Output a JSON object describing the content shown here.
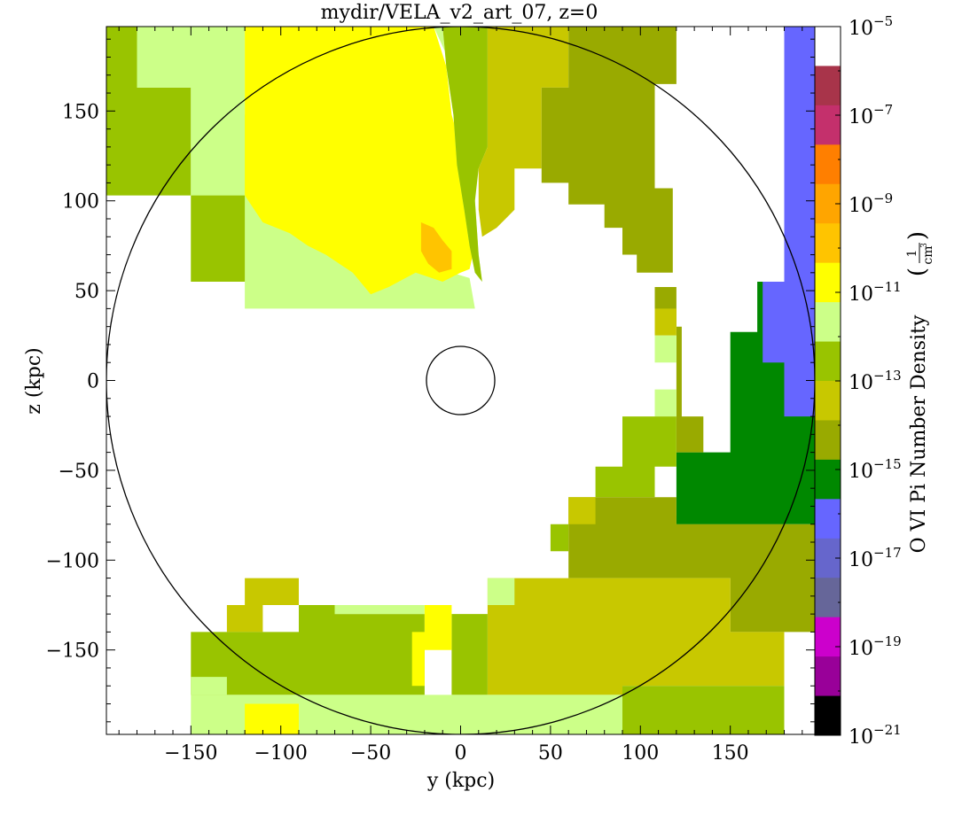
{
  "chart_data": {
    "type": "heatmap",
    "title": "mydir/VELA_v2_art_07, z=0",
    "xlabel": "y  (kpc)",
    "ylabel": "z  (kpc)",
    "xlim": [
      -197,
      197
    ],
    "ylim": [
      -197,
      197
    ],
    "xticks": [
      -150,
      -100,
      -50,
      0,
      50,
      100,
      150
    ],
    "yticks": [
      150,
      100,
      50,
      0,
      -50,
      -100,
      -150
    ],
    "xtick_labels": [
      "−150",
      "−100",
      "−50",
      "0",
      "50",
      "100",
      "150"
    ],
    "ytick_labels": [
      "150",
      "100",
      "50",
      "0",
      "−50",
      "−100",
      "−150"
    ],
    "colorbar": {
      "label": "O VI Pi Number Density",
      "unit_num": "1",
      "unit_den": "cm",
      "unit_exp": "3",
      "scale": "log",
      "range_exp": [
        -21,
        -5
      ],
      "tick_exps": [
        -5,
        -7,
        -9,
        -11,
        -13,
        -15,
        -17,
        -19,
        -21
      ],
      "tick_labels": [
        {
          "base": "10",
          "exp": "-5"
        },
        {
          "base": "10",
          "exp": "-7"
        },
        {
          "base": "10",
          "exp": "-9"
        },
        {
          "base": "10",
          "exp": "-11"
        },
        {
          "base": "10",
          "exp": "-13"
        },
        {
          "base": "10",
          "exp": "-15"
        },
        {
          "base": "10",
          "exp": "-17"
        },
        {
          "base": "10",
          "exp": "-19"
        },
        {
          "base": "10",
          "exp": "-21"
        }
      ],
      "colors_top_to_bottom": [
        "#ffffff",
        "#a8344a",
        "#c4306c",
        "#ff7f00",
        "#ffa500",
        "#ffc400",
        "#ffff00",
        "#ccff88",
        "#99c400",
        "#c8c800",
        "#99aa00",
        "#008800",
        "#6666ff",
        "#6666cc",
        "#666699",
        "#cc00cc",
        "#990099",
        "#000000"
      ]
    },
    "circles": [
      {
        "cx": 0,
        "cy": 0,
        "r": 197
      },
      {
        "cx": 0,
        "cy": 0,
        "r": 19
      }
    ],
    "regions": [
      {
        "color": "#99c400",
        "points": [
          [
            -197,
            197
          ],
          [
            -180,
            197
          ],
          [
            -180,
            163
          ],
          [
            -150,
            163
          ],
          [
            -150,
            103
          ],
          [
            -197,
            103
          ]
        ]
      },
      {
        "color": "#ccff88",
        "points": [
          [
            -180,
            197
          ],
          [
            -120,
            197
          ],
          [
            -120,
            148
          ],
          [
            -90,
            148
          ],
          [
            -90,
            118
          ],
          [
            -60,
            118
          ],
          [
            -60,
            103
          ],
          [
            -150,
            103
          ],
          [
            -150,
            163
          ],
          [
            -180,
            163
          ]
        ]
      },
      {
        "color": "#ccff88",
        "points": [
          [
            -150,
            103
          ],
          [
            -60,
            103
          ],
          [
            -60,
            85
          ],
          [
            -35,
            85
          ],
          [
            -35,
            65
          ],
          [
            -5,
            60
          ],
          [
            5,
            57
          ],
          [
            8,
            40
          ],
          [
            -120,
            40
          ],
          [
            -120,
            55
          ],
          [
            -150,
            55
          ]
        ]
      },
      {
        "color": "#99c400",
        "points": [
          [
            -150,
            103
          ],
          [
            -120,
            103
          ],
          [
            -120,
            55
          ],
          [
            -150,
            55
          ]
        ]
      },
      {
        "color": "#ffff00",
        "points": [
          [
            -120,
            197
          ],
          [
            -15,
            197
          ],
          [
            -8,
            175
          ],
          [
            -5,
            148
          ],
          [
            0,
            130
          ],
          [
            5,
            118
          ],
          [
            8,
            95
          ],
          [
            8,
            75
          ],
          [
            5,
            62
          ],
          [
            0,
            60
          ],
          [
            -10,
            55
          ],
          [
            -25,
            60
          ],
          [
            -40,
            52
          ],
          [
            -50,
            48
          ],
          [
            -60,
            60
          ],
          [
            -75,
            70
          ],
          [
            -85,
            75
          ],
          [
            -95,
            82
          ],
          [
            -110,
            88
          ],
          [
            -120,
            103
          ],
          [
            -120,
            148
          ]
        ]
      },
      {
        "color": "#ffc400",
        "points": [
          [
            -22,
            88
          ],
          [
            -15,
            85
          ],
          [
            -10,
            78
          ],
          [
            -5,
            72
          ],
          [
            -5,
            62
          ],
          [
            -12,
            60
          ],
          [
            -18,
            65
          ],
          [
            -22,
            72
          ]
        ]
      },
      {
        "color": "#ccff88",
        "points": [
          [
            -15,
            197
          ],
          [
            -10,
            197
          ],
          [
            -8,
            175
          ],
          [
            -4,
            148
          ],
          [
            -2,
            120
          ],
          [
            2,
            95
          ],
          [
            5,
            75
          ],
          [
            8,
            60
          ],
          [
            12,
            55
          ],
          [
            10,
            70
          ],
          [
            8,
            100
          ],
          [
            5,
            120
          ],
          [
            0,
            150
          ],
          [
            -5,
            175
          ]
        ]
      },
      {
        "color": "#99c400",
        "points": [
          [
            -10,
            197
          ],
          [
            15,
            197
          ],
          [
            15,
            130
          ],
          [
            10,
            118
          ],
          [
            8,
            100
          ],
          [
            10,
            70
          ],
          [
            12,
            55
          ],
          [
            8,
            60
          ],
          [
            5,
            75
          ],
          [
            2,
            95
          ],
          [
            -2,
            120
          ],
          [
            -4,
            148
          ],
          [
            -8,
            175
          ]
        ]
      },
      {
        "color": "#c8c800",
        "points": [
          [
            15,
            197
          ],
          [
            60,
            197
          ],
          [
            60,
            163
          ],
          [
            45,
            163
          ],
          [
            45,
            118
          ],
          [
            30,
            118
          ],
          [
            30,
            95
          ],
          [
            25,
            90
          ],
          [
            20,
            85
          ],
          [
            12,
            80
          ],
          [
            10,
            95
          ],
          [
            10,
            118
          ],
          [
            15,
            130
          ]
        ]
      },
      {
        "color": "#99aa00",
        "points": [
          [
            60,
            197
          ],
          [
            120,
            197
          ],
          [
            120,
            165
          ],
          [
            108,
            165
          ],
          [
            108,
            107
          ],
          [
            118,
            107
          ],
          [
            118,
            60
          ],
          [
            98,
            60
          ],
          [
            98,
            70
          ],
          [
            90,
            70
          ],
          [
            90,
            85
          ],
          [
            80,
            85
          ],
          [
            80,
            98
          ],
          [
            60,
            98
          ],
          [
            60,
            110
          ],
          [
            45,
            110
          ],
          [
            45,
            163
          ],
          [
            60,
            163
          ]
        ]
      },
      {
        "color": "#008800",
        "points": [
          [
            120,
            197
          ],
          [
            180,
            197
          ],
          [
            180,
            55
          ],
          [
            165,
            55
          ],
          [
            165,
            27
          ],
          [
            150,
            27
          ],
          [
            150,
            -40
          ],
          [
            120,
            -40
          ],
          [
            120,
            -80
          ],
          [
            180,
            -80
          ],
          [
            180,
            -80
          ],
          [
            197,
            -80
          ],
          [
            197,
            197
          ]
        ]
      },
      {
        "color": "#008800",
        "points": [
          [
            120,
            -80
          ],
          [
            180,
            -80
          ],
          [
            180,
            -75
          ],
          [
            120,
            -75
          ]
        ]
      },
      {
        "color": "#6666ff",
        "points": [
          [
            180,
            197
          ],
          [
            197,
            197
          ],
          [
            197,
            -20
          ],
          [
            180,
            -20
          ],
          [
            180,
            10
          ],
          [
            168,
            10
          ],
          [
            168,
            55
          ],
          [
            180,
            55
          ]
        ]
      },
      {
        "color": "#99aa00",
        "points": [
          [
            108,
            52
          ],
          [
            120,
            52
          ],
          [
            120,
            -40
          ],
          [
            135,
            -40
          ],
          [
            135,
            -20
          ],
          [
            123,
            -20
          ],
          [
            123,
            30
          ],
          [
            108,
            30
          ]
        ]
      },
      {
        "color": "#c8c800",
        "points": [
          [
            108,
            40
          ],
          [
            120,
            40
          ],
          [
            120,
            25
          ],
          [
            108,
            25
          ]
        ]
      },
      {
        "color": "#ccff88",
        "points": [
          [
            108,
            25
          ],
          [
            120,
            25
          ],
          [
            120,
            10
          ],
          [
            108,
            10
          ]
        ]
      },
      {
        "color": "#ccff88",
        "points": [
          [
            108,
            -5
          ],
          [
            120,
            -5
          ],
          [
            120,
            -20
          ],
          [
            108,
            -20
          ]
        ]
      },
      {
        "color": "#99c400",
        "points": [
          [
            90,
            -20
          ],
          [
            120,
            -20
          ],
          [
            120,
            -48
          ],
          [
            90,
            -48
          ]
        ]
      },
      {
        "color": "#99c400",
        "points": [
          [
            90,
            -35
          ],
          [
            108,
            -35
          ],
          [
            108,
            -50
          ],
          [
            90,
            -50
          ]
        ]
      },
      {
        "color": "#99c400",
        "points": [
          [
            75,
            -48
          ],
          [
            108,
            -48
          ],
          [
            108,
            -65
          ],
          [
            75,
            -65
          ]
        ]
      },
      {
        "color": "#99aa00",
        "points": [
          [
            60,
            -65
          ],
          [
            120,
            -65
          ],
          [
            120,
            -80
          ],
          [
            197,
            -80
          ],
          [
            197,
            -140
          ],
          [
            150,
            -140
          ],
          [
            150,
            -110
          ],
          [
            90,
            -110
          ],
          [
            60,
            -110
          ]
        ]
      },
      {
        "color": "#c8c800",
        "points": [
          [
            60,
            -65
          ],
          [
            75,
            -65
          ],
          [
            75,
            -80
          ],
          [
            60,
            -80
          ]
        ]
      },
      {
        "color": "#99c400",
        "points": [
          [
            50,
            -80
          ],
          [
            60,
            -80
          ],
          [
            60,
            -95
          ],
          [
            50,
            -95
          ]
        ]
      },
      {
        "color": "#c8c800",
        "points": [
          [
            15,
            -110
          ],
          [
            150,
            -110
          ],
          [
            150,
            -140
          ],
          [
            180,
            -140
          ],
          [
            180,
            -170
          ],
          [
            90,
            -170
          ],
          [
            90,
            -175
          ],
          [
            15,
            -175
          ]
        ]
      },
      {
        "color": "#c8c800",
        "points": [
          [
            -120,
            -110
          ],
          [
            -90,
            -110
          ],
          [
            -90,
            -125
          ],
          [
            -120,
            -125
          ]
        ]
      },
      {
        "color": "#c8c800",
        "points": [
          [
            -130,
            -125
          ],
          [
            -110,
            -125
          ],
          [
            -110,
            -140
          ],
          [
            -130,
            -140
          ]
        ]
      },
      {
        "color": "#99c400",
        "points": [
          [
            -150,
            -140
          ],
          [
            -90,
            -140
          ],
          [
            -90,
            -125
          ],
          [
            -70,
            -125
          ],
          [
            -70,
            -130
          ],
          [
            -20,
            -130
          ],
          [
            -20,
            -175
          ],
          [
            -150,
            -175
          ]
        ]
      },
      {
        "color": "#99c400",
        "points": [
          [
            -5,
            -130
          ],
          [
            15,
            -130
          ],
          [
            15,
            -175
          ],
          [
            -5,
            -175
          ]
        ]
      },
      {
        "color": "#99c400",
        "points": [
          [
            90,
            -170
          ],
          [
            180,
            -170
          ],
          [
            180,
            -197
          ],
          [
            90,
            -197
          ]
        ]
      },
      {
        "color": "#ccff88",
        "points": [
          [
            -150,
            -175
          ],
          [
            90,
            -175
          ],
          [
            90,
            -197
          ],
          [
            -150,
            -197
          ]
        ]
      },
      {
        "color": "#ccff88",
        "points": [
          [
            -70,
            -125
          ],
          [
            -20,
            -125
          ],
          [
            -20,
            -130
          ],
          [
            -70,
            -130
          ]
        ]
      },
      {
        "color": "#ccff88",
        "points": [
          [
            -150,
            -165
          ],
          [
            -130,
            -165
          ],
          [
            -130,
            -175
          ],
          [
            -150,
            -175
          ]
        ]
      },
      {
        "color": "#ffff00",
        "points": [
          [
            -120,
            -180
          ],
          [
            -90,
            -180
          ],
          [
            -90,
            -197
          ],
          [
            -120,
            -197
          ]
        ]
      },
      {
        "color": "#ffff00",
        "points": [
          [
            -20,
            -125
          ],
          [
            -5,
            -125
          ],
          [
            -5,
            -150
          ],
          [
            -20,
            -150
          ],
          [
            -20,
            -170
          ],
          [
            -27,
            -170
          ],
          [
            -27,
            -140
          ],
          [
            -20,
            -140
          ]
        ]
      },
      {
        "color": "#ccff88",
        "points": [
          [
            15,
            -110
          ],
          [
            30,
            -110
          ],
          [
            30,
            -125
          ],
          [
            15,
            -125
          ]
        ]
      }
    ]
  }
}
